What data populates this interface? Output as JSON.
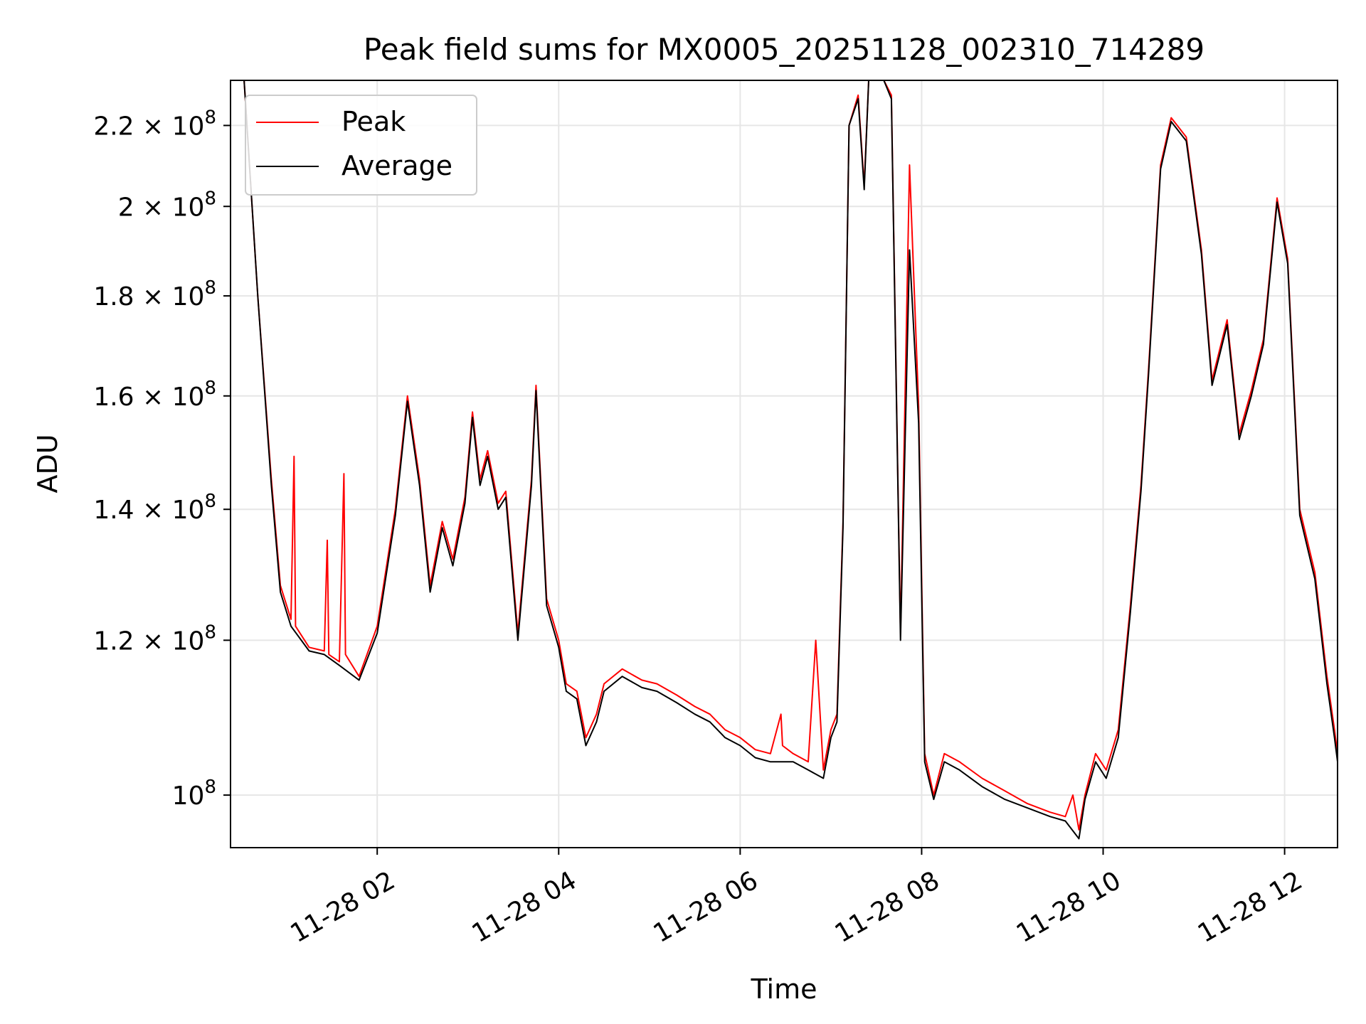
{
  "chart_data": {
    "type": "line",
    "title": "Peak field sums for MX0005_20251128_002310_714289",
    "xlabel": "Time",
    "ylabel": "ADU",
    "yscale": "log",
    "grid": true,
    "legend_position": "top-left",
    "xlim": [
      "2025-11-28 00:23",
      "2025-11-28 12:35"
    ],
    "ylim": [
      94000000.0,
      232000000.0
    ],
    "xticks": [
      {
        "value": "2025-11-28 02:00",
        "label": "11-28 02"
      },
      {
        "value": "2025-11-28 04:00",
        "label": "11-28 04"
      },
      {
        "value": "2025-11-28 06:00",
        "label": "11-28 06"
      },
      {
        "value": "2025-11-28 08:00",
        "label": "11-28 08"
      },
      {
        "value": "2025-11-28 10:00",
        "label": "11-28 10"
      },
      {
        "value": "2025-11-28 12:00",
        "label": "11-28 12"
      }
    ],
    "yticks": [
      {
        "value": 100000000,
        "mantissa": "",
        "exponent": "8"
      },
      {
        "value": 120000000,
        "mantissa": "1.2",
        "exponent": "8"
      },
      {
        "value": 140000000,
        "mantissa": "1.4",
        "exponent": "8"
      },
      {
        "value": 160000000,
        "mantissa": "1.6",
        "exponent": "8"
      },
      {
        "value": 180000000,
        "mantissa": "1.8",
        "exponent": "8"
      },
      {
        "value": 200000000,
        "mantissa": "2",
        "exponent": "8"
      },
      {
        "value": 220000000,
        "mantissa": "2.2",
        "exponent": "8"
      }
    ],
    "series": [
      {
        "name": "Peak",
        "color": "#ff0000",
        "points": [
          [
            "2025-11-28 00:23",
            232000000.0
          ],
          [
            "2025-11-28 00:32",
            232000000.0
          ],
          [
            "2025-11-28 00:41",
            180000000.0
          ],
          [
            "2025-11-28 00:50",
            145000000.0
          ],
          [
            "2025-11-28 00:56",
            128000000.0
          ],
          [
            "2025-11-28 01:03",
            123000000.0
          ],
          [
            "2025-11-28 01:05",
            149000000.0
          ],
          [
            "2025-11-28 01:06",
            122000000.0
          ],
          [
            "2025-11-28 01:15",
            119000000.0
          ],
          [
            "2025-11-28 01:25",
            118500000.0
          ],
          [
            "2025-11-28 01:27",
            135000000.0
          ],
          [
            "2025-11-28 01:28",
            118000000.0
          ],
          [
            "2025-11-28 01:35",
            117000000.0
          ],
          [
            "2025-11-28 01:38",
            146000000.0
          ],
          [
            "2025-11-28 01:39",
            118000000.0
          ],
          [
            "2025-11-28 01:48",
            115000000.0
          ],
          [
            "2025-11-28 02:00",
            122000000.0
          ],
          [
            "2025-11-28 02:12",
            140000000.0
          ],
          [
            "2025-11-28 02:20",
            160000000.0
          ],
          [
            "2025-11-28 02:28",
            145000000.0
          ],
          [
            "2025-11-28 02:35",
            128000000.0
          ],
          [
            "2025-11-28 02:43",
            138000000.0
          ],
          [
            "2025-11-28 02:50",
            132000000.0
          ],
          [
            "2025-11-28 02:58",
            142000000.0
          ],
          [
            "2025-11-28 03:03",
            157000000.0
          ],
          [
            "2025-11-28 03:08",
            145000000.0
          ],
          [
            "2025-11-28 03:13",
            150000000.0
          ],
          [
            "2025-11-28 03:20",
            141000000.0
          ],
          [
            "2025-11-28 03:25",
            143000000.0
          ],
          [
            "2025-11-28 03:33",
            121000000.0
          ],
          [
            "2025-11-28 03:42",
            145000000.0
          ],
          [
            "2025-11-28 03:45",
            162000000.0
          ],
          [
            "2025-11-28 03:52",
            126000000.0
          ],
          [
            "2025-11-28 04:00",
            120000000.0
          ],
          [
            "2025-11-28 04:05",
            114000000.0
          ],
          [
            "2025-11-28 04:12",
            113000000.0
          ],
          [
            "2025-11-28 04:18",
            107000000.0
          ],
          [
            "2025-11-28 04:25",
            110000000.0
          ],
          [
            "2025-11-28 04:30",
            114000000.0
          ],
          [
            "2025-11-28 04:42",
            116000000.0
          ],
          [
            "2025-11-28 04:55",
            114500000.0
          ],
          [
            "2025-11-28 05:05",
            114000000.0
          ],
          [
            "2025-11-28 05:18",
            112500000.0
          ],
          [
            "2025-11-28 05:30",
            111000000.0
          ],
          [
            "2025-11-28 05:40",
            110000000.0
          ],
          [
            "2025-11-28 05:50",
            108000000.0
          ],
          [
            "2025-11-28 06:00",
            107000000.0
          ],
          [
            "2025-11-28 06:10",
            105500000.0
          ],
          [
            "2025-11-28 06:20",
            105000000.0
          ],
          [
            "2025-11-28 06:27",
            110000000.0
          ],
          [
            "2025-11-28 06:28",
            106000000.0
          ],
          [
            "2025-11-28 06:35",
            105000000.0
          ],
          [
            "2025-11-28 06:45",
            104000000.0
          ],
          [
            "2025-11-28 06:50",
            120000000.0
          ],
          [
            "2025-11-28 06:55",
            103000000.0
          ],
          [
            "2025-11-28 07:00",
            108000000.0
          ],
          [
            "2025-11-28 07:04",
            110000000.0
          ],
          [
            "2025-11-28 07:08",
            138000000.0
          ],
          [
            "2025-11-28 07:12",
            220000000.0
          ],
          [
            "2025-11-28 07:18",
            228000000.0
          ],
          [
            "2025-11-28 07:22",
            205000000.0
          ],
          [
            "2025-11-28 07:25",
            232000000.0
          ],
          [
            "2025-11-28 07:35",
            232000000.0
          ],
          [
            "2025-11-28 07:40",
            228000000.0
          ],
          [
            "2025-11-28 07:46",
            121000000.0
          ],
          [
            "2025-11-28 07:52",
            210000000.0
          ],
          [
            "2025-11-28 07:58",
            158000000.0
          ],
          [
            "2025-11-28 08:02",
            105000000.0
          ],
          [
            "2025-11-28 08:08",
            100000000.0
          ],
          [
            "2025-11-28 08:15",
            105000000.0
          ],
          [
            "2025-11-28 08:25",
            104000000.0
          ],
          [
            "2025-11-28 08:40",
            102000000.0
          ],
          [
            "2025-11-28 08:55",
            100500000.0
          ],
          [
            "2025-11-28 09:10",
            99000000.0
          ],
          [
            "2025-11-28 09:25",
            98000000.0
          ],
          [
            "2025-11-28 09:35",
            97500000.0
          ],
          [
            "2025-11-28 09:40",
            100000000.0
          ],
          [
            "2025-11-28 09:44",
            96000000.0
          ],
          [
            "2025-11-28 09:48",
            100000000.0
          ],
          [
            "2025-11-28 09:55",
            105000000.0
          ],
          [
            "2025-11-28 10:02",
            103000000.0
          ],
          [
            "2025-11-28 10:10",
            108000000.0
          ],
          [
            "2025-11-28 10:18",
            125000000.0
          ],
          [
            "2025-11-28 10:25",
            144000000.0
          ],
          [
            "2025-11-28 10:30",
            165000000.0
          ],
          [
            "2025-11-28 10:38",
            210000000.0
          ],
          [
            "2025-11-28 10:45",
            222000000.0
          ],
          [
            "2025-11-28 10:55",
            217000000.0
          ],
          [
            "2025-11-28 11:05",
            190000000.0
          ],
          [
            "2025-11-28 11:12",
            163000000.0
          ],
          [
            "2025-11-28 11:22",
            175000000.0
          ],
          [
            "2025-11-28 11:30",
            153000000.0
          ],
          [
            "2025-11-28 11:38",
            161000000.0
          ],
          [
            "2025-11-28 11:46",
            171000000.0
          ],
          [
            "2025-11-28 11:55",
            202000000.0
          ],
          [
            "2025-11-28 12:02",
            188000000.0
          ],
          [
            "2025-11-28 12:10",
            140000000.0
          ],
          [
            "2025-11-28 12:20",
            130000000.0
          ],
          [
            "2025-11-28 12:28",
            115000000.0
          ],
          [
            "2025-11-28 12:33",
            108000000.0
          ],
          [
            "2025-11-28 12:35",
            105000000.0
          ]
        ]
      },
      {
        "name": "Average",
        "color": "#000000",
        "points": [
          [
            "2025-11-28 00:23",
            232000000.0
          ],
          [
            "2025-11-28 00:32",
            232000000.0
          ],
          [
            "2025-11-28 00:41",
            180000000.0
          ],
          [
            "2025-11-28 00:50",
            144000000.0
          ],
          [
            "2025-11-28 00:56",
            127000000.0
          ],
          [
            "2025-11-28 01:03",
            122000000.0
          ],
          [
            "2025-11-28 01:15",
            118500000.0
          ],
          [
            "2025-11-28 01:25",
            118000000.0
          ],
          [
            "2025-11-28 01:35",
            116500000.0
          ],
          [
            "2025-11-28 01:48",
            114500000.0
          ],
          [
            "2025-11-28 02:00",
            121000000.0
          ],
          [
            "2025-11-28 02:12",
            139000000.0
          ],
          [
            "2025-11-28 02:20",
            159000000.0
          ],
          [
            "2025-11-28 02:28",
            144000000.0
          ],
          [
            "2025-11-28 02:35",
            127000000.0
          ],
          [
            "2025-11-28 02:43",
            137000000.0
          ],
          [
            "2025-11-28 02:50",
            131000000.0
          ],
          [
            "2025-11-28 02:58",
            141000000.0
          ],
          [
            "2025-11-28 03:03",
            156000000.0
          ],
          [
            "2025-11-28 03:08",
            144000000.0
          ],
          [
            "2025-11-28 03:13",
            149000000.0
          ],
          [
            "2025-11-28 03:20",
            140000000.0
          ],
          [
            "2025-11-28 03:25",
            142000000.0
          ],
          [
            "2025-11-28 03:33",
            120000000.0
          ],
          [
            "2025-11-28 03:42",
            144000000.0
          ],
          [
            "2025-11-28 03:45",
            161000000.0
          ],
          [
            "2025-11-28 03:52",
            125000000.0
          ],
          [
            "2025-11-28 04:00",
            119000000.0
          ],
          [
            "2025-11-28 04:05",
            113000000.0
          ],
          [
            "2025-11-28 04:12",
            112000000.0
          ],
          [
            "2025-11-28 04:18",
            106000000.0
          ],
          [
            "2025-11-28 04:25",
            109000000.0
          ],
          [
            "2025-11-28 04:30",
            113000000.0
          ],
          [
            "2025-11-28 04:42",
            115000000.0
          ],
          [
            "2025-11-28 04:55",
            113500000.0
          ],
          [
            "2025-11-28 05:05",
            113000000.0
          ],
          [
            "2025-11-28 05:18",
            111500000.0
          ],
          [
            "2025-11-28 05:30",
            110000000.0
          ],
          [
            "2025-11-28 05:40",
            109000000.0
          ],
          [
            "2025-11-28 05:50",
            107000000.0
          ],
          [
            "2025-11-28 06:00",
            106000000.0
          ],
          [
            "2025-11-28 06:10",
            104500000.0
          ],
          [
            "2025-11-28 06:20",
            104000000.0
          ],
          [
            "2025-11-28 06:35",
            104000000.0
          ],
          [
            "2025-11-28 06:45",
            103000000.0
          ],
          [
            "2025-11-28 06:55",
            102000000.0
          ],
          [
            "2025-11-28 07:00",
            107000000.0
          ],
          [
            "2025-11-28 07:04",
            109000000.0
          ],
          [
            "2025-11-28 07:08",
            137000000.0
          ],
          [
            "2025-11-28 07:12",
            220000000.0
          ],
          [
            "2025-11-28 07:18",
            227000000.0
          ],
          [
            "2025-11-28 07:22",
            204000000.0
          ],
          [
            "2025-11-28 07:25",
            232000000.0
          ],
          [
            "2025-11-28 07:35",
            232000000.0
          ],
          [
            "2025-11-28 07:40",
            227000000.0
          ],
          [
            "2025-11-28 07:46",
            120000000.0
          ],
          [
            "2025-11-28 07:52",
            190000000.0
          ],
          [
            "2025-11-28 07:58",
            155000000.0
          ],
          [
            "2025-11-28 08:02",
            104000000.0
          ],
          [
            "2025-11-28 08:08",
            99500000.0
          ],
          [
            "2025-11-28 08:15",
            104000000.0
          ],
          [
            "2025-11-28 08:25",
            103000000.0
          ],
          [
            "2025-11-28 08:40",
            101000000.0
          ],
          [
            "2025-11-28 08:55",
            99500000.0
          ],
          [
            "2025-11-28 09:10",
            98500000.0
          ],
          [
            "2025-11-28 09:25",
            97500000.0
          ],
          [
            "2025-11-28 09:35",
            97000000.0
          ],
          [
            "2025-11-28 09:44",
            95000000.0
          ],
          [
            "2025-11-28 09:48",
            99500000.0
          ],
          [
            "2025-11-28 09:55",
            104000000.0
          ],
          [
            "2025-11-28 10:02",
            102000000.0
          ],
          [
            "2025-11-28 10:10",
            107000000.0
          ],
          [
            "2025-11-28 10:18",
            124000000.0
          ],
          [
            "2025-11-28 10:25",
            143000000.0
          ],
          [
            "2025-11-28 10:30",
            164000000.0
          ],
          [
            "2025-11-28 10:38",
            209000000.0
          ],
          [
            "2025-11-28 10:45",
            221000000.0
          ],
          [
            "2025-11-28 10:55",
            216000000.0
          ],
          [
            "2025-11-28 11:05",
            189000000.0
          ],
          [
            "2025-11-28 11:12",
            162000000.0
          ],
          [
            "2025-11-28 11:22",
            174000000.0
          ],
          [
            "2025-11-28 11:30",
            152000000.0
          ],
          [
            "2025-11-28 11:38",
            160000000.0
          ],
          [
            "2025-11-28 11:46",
            170000000.0
          ],
          [
            "2025-11-28 11:55",
            201000000.0
          ],
          [
            "2025-11-28 12:02",
            187000000.0
          ],
          [
            "2025-11-28 12:10",
            139000000.0
          ],
          [
            "2025-11-28 12:20",
            129000000.0
          ],
          [
            "2025-11-28 12:28",
            114000000.0
          ],
          [
            "2025-11-28 12:33",
            107000000.0
          ],
          [
            "2025-11-28 12:35",
            104000000.0
          ]
        ]
      }
    ]
  }
}
